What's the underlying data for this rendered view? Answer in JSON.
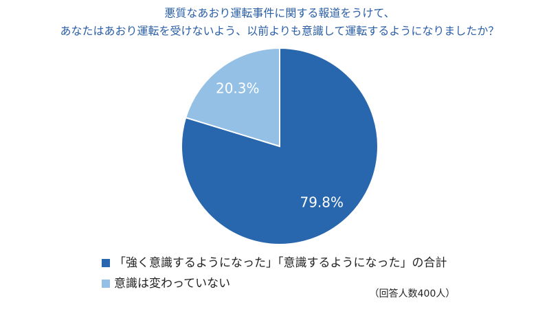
{
  "chart_data": {
    "type": "pie",
    "title": [
      "悪質なあおり運転事件に関する報道をうけて、",
      "あなたはあおり運転を受けないよう、以前よりも意識して運転するようになりましたか？"
    ],
    "categories": [
      "「強く意識するようになった」「意識するようになった」の合計",
      "意識は変わっていない"
    ],
    "values": [
      79.8,
      20.3
    ],
    "value_labels": [
      "79.8%",
      "20.3%"
    ],
    "colors": [
      "#2867ad",
      "#93c0e4"
    ],
    "annotation": "（回答人数400人）"
  }
}
